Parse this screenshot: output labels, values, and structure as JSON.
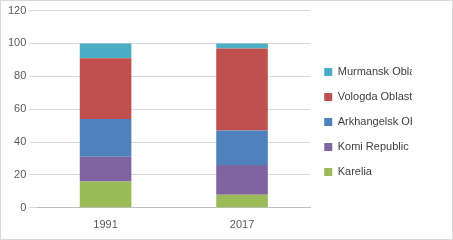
{
  "chart_data": {
    "type": "bar",
    "stacked": true,
    "grid": true,
    "legend": "right",
    "categories": [
      "1991",
      "2017"
    ],
    "series": [
      {
        "name": "Karelia",
        "color": "#9bbb59",
        "values": [
          16,
          8
        ]
      },
      {
        "name": "Komi Republic",
        "color": "#8064a2",
        "values": [
          15,
          18
        ]
      },
      {
        "name": "Arkhangelsk Oblast",
        "color": "#4f81bd",
        "values": [
          23,
          21
        ]
      },
      {
        "name": "Vologda Oblast",
        "color": "#c0504d",
        "values": [
          37,
          50
        ]
      },
      {
        "name": "Murmansk Oblast",
        "color": "#4bacc6",
        "values": [
          9,
          3
        ]
      }
    ],
    "ylim": [
      0,
      120
    ],
    "yticks": [
      0,
      20,
      40,
      60,
      80,
      100,
      120
    ]
  }
}
